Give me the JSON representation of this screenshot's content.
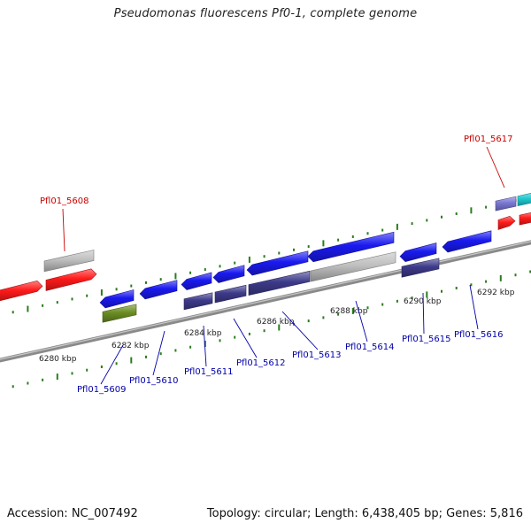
{
  "title": "Pseudomonas fluorescens Pf0-1, complete genome",
  "accession_text": "Accession: NC_007492",
  "genome_info_text": "Topology: circular; Length: 6,438,405 bp; Genes: 5,816",
  "colors": {
    "red": "#ff1a1a",
    "grey": "#bfbfbf",
    "blue": "#1a1af0",
    "darkblue": "#3d3a8a",
    "olive": "#6b8e23",
    "lavender": "#7a77d4",
    "cyan": "#20c8d0",
    "tick": "#2a7d1c",
    "label_red": "#cc0000",
    "label_blue": "#0000aa"
  },
  "scale_labels": [
    "6280 kbp",
    "6282 kbp",
    "6284 kbp",
    "6286 kbp",
    "6288 kbp",
    "6290 kbp",
    "6292 kbp"
  ],
  "gene_labels": [
    {
      "text": "Pfl01_5608",
      "color": "red"
    },
    {
      "text": "Pfl01_5609",
      "color": "blue"
    },
    {
      "text": "Pfl01_5610",
      "color": "blue"
    },
    {
      "text": "Pfl01_5611",
      "color": "blue"
    },
    {
      "text": "Pfl01_5612",
      "color": "blue"
    },
    {
      "text": "Pfl01_5613",
      "color": "blue"
    },
    {
      "text": "Pfl01_5614",
      "color": "blue"
    },
    {
      "text": "Pfl01_5615",
      "color": "blue"
    },
    {
      "text": "Pfl01_5616",
      "color": "blue"
    },
    {
      "text": "Pfl01_5617",
      "color": "red"
    }
  ]
}
